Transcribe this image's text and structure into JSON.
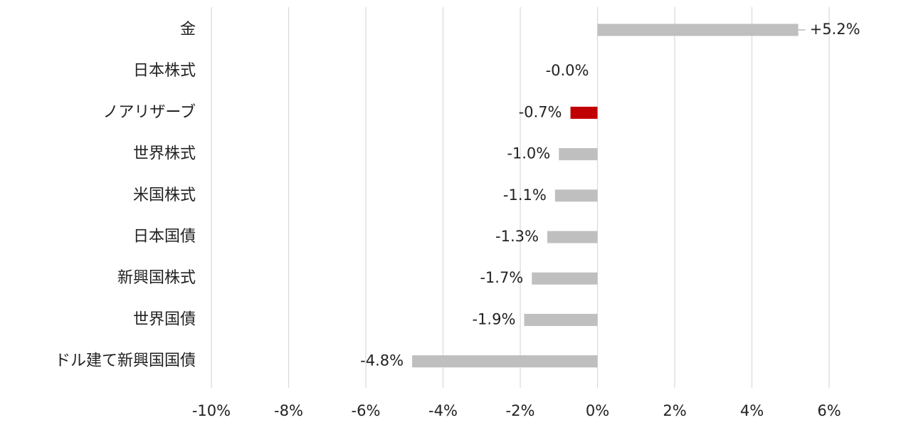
{
  "chart_data": {
    "type": "bar",
    "orientation": "horizontal",
    "categories": [
      "金",
      "日本株式",
      "ノアリザーブ",
      "世界株式",
      "米国株式",
      "日本国債",
      "新興国株式",
      "世界国債",
      "ドル建て新興国国債"
    ],
    "values": [
      5.2,
      -0.0,
      -0.7,
      -1.0,
      -1.1,
      -1.3,
      -1.7,
      -1.9,
      -4.8
    ],
    "data_labels": [
      "+5.2%",
      "-0.0%",
      "-0.7%",
      "-1.0%",
      "-1.1%",
      "-1.3%",
      "-1.7%",
      "-1.9%",
      "-4.8%"
    ],
    "highlight_category": "ノアリザーブ",
    "xlim": [
      -10,
      6
    ],
    "x_ticks": [
      -10,
      -8,
      -6,
      -4,
      -2,
      0,
      2,
      4,
      6
    ],
    "x_tick_labels": [
      "-10%",
      "-8%",
      "-6%",
      "-4%",
      "-2%",
      "0%",
      "2%",
      "4%",
      "6%"
    ],
    "grid": "vertical",
    "legend": "none",
    "title": "",
    "xlabel": "",
    "ylabel": "",
    "colors": {
      "bar": "#bfbfbf",
      "highlight": "#c00000",
      "grid": "#d9d9d9",
      "text": "#222222"
    }
  }
}
